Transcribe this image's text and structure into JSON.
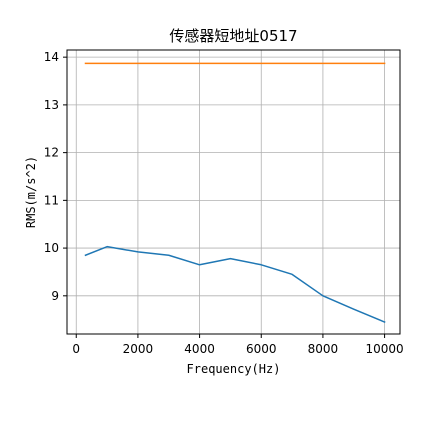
{
  "chart_data": {
    "type": "line",
    "title": "传感器短地址0517",
    "xlabel": "Frequency(Hz)",
    "ylabel": "RMS(m/s^2)",
    "xlim": [
      -300,
      10500
    ],
    "ylim": [
      8.2,
      14.15
    ],
    "x_ticks": [
      0,
      2000,
      4000,
      6000,
      8000,
      10000
    ],
    "y_ticks": [
      9,
      10,
      11,
      12,
      13,
      14
    ],
    "grid": true,
    "series": [
      {
        "color": "#1f77b4",
        "points": [
          [
            300,
            9.85
          ],
          [
            1000,
            10.03
          ],
          [
            2000,
            9.92
          ],
          [
            3000,
            9.85
          ],
          [
            4000,
            9.65
          ],
          [
            5000,
            9.78
          ],
          [
            6000,
            9.65
          ],
          [
            7000,
            9.45
          ],
          [
            8000,
            9.0
          ],
          [
            9000,
            8.72
          ],
          [
            10000,
            8.45
          ]
        ]
      },
      {
        "color": "#ff7f0e",
        "points": [
          [
            300,
            13.87
          ],
          [
            10000,
            13.87
          ]
        ]
      }
    ]
  }
}
